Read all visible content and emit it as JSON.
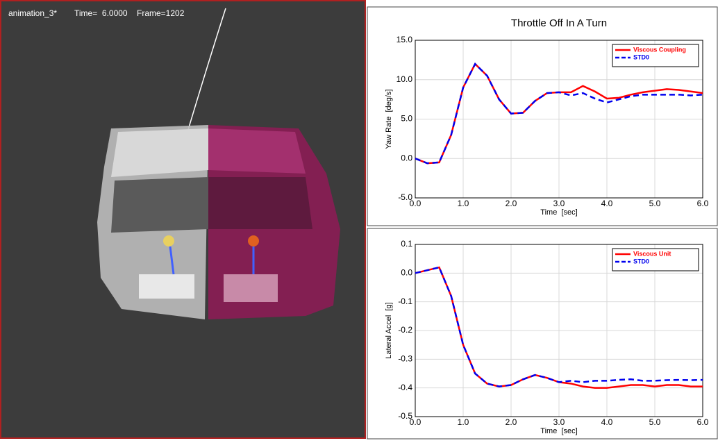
{
  "viewport": {
    "name": "animation_3*",
    "time": "Time=  6.0000",
    "frame": "Frame=1202"
  },
  "chart_data": [
    {
      "type": "line",
      "title": "Throttle Off In A Turn",
      "x_label": "Time  [sec]",
      "y_label": "Yaw Rate  [deg/s]",
      "x": [
        0,
        0.25,
        0.5,
        0.75,
        1.0,
        1.25,
        1.5,
        1.75,
        2.0,
        2.25,
        2.5,
        2.75,
        3.0,
        3.25,
        3.5,
        3.75,
        4.0,
        4.25,
        4.5,
        4.75,
        5.0,
        5.25,
        5.5,
        5.75,
        6.0
      ],
      "series": [
        {
          "name": "Viscous Coupling",
          "color": "#ff0000",
          "linestyle": "solid",
          "values": [
            0,
            -0.6,
            -0.5,
            3,
            9,
            12,
            10.5,
            7.5,
            5.7,
            5.8,
            7.3,
            8.3,
            8.4,
            8.4,
            9.2,
            8.5,
            7.6,
            7.7,
            8.1,
            8.4,
            8.6,
            8.8,
            8.7,
            8.5,
            8.3
          ]
        },
        {
          "name": "STD0",
          "color": "#0000ee",
          "linestyle": "dashed",
          "values": [
            0,
            -0.6,
            -0.5,
            3,
            9,
            12,
            10.5,
            7.5,
            5.7,
            5.8,
            7.3,
            8.3,
            8.4,
            8.0,
            8.3,
            7.6,
            7.1,
            7.5,
            7.9,
            8.1,
            8.1,
            8.1,
            8.1,
            8.0,
            8.1
          ]
        }
      ],
      "xlim": [
        0,
        6
      ],
      "ylim": [
        -5,
        15
      ],
      "xticks": [
        {
          "value": 0,
          "label": "0.0"
        },
        {
          "value": 1,
          "label": "1.0"
        },
        {
          "value": 2,
          "label": "2.0"
        },
        {
          "value": 3,
          "label": "3.0"
        },
        {
          "value": 4,
          "label": "4.0"
        },
        {
          "value": 5,
          "label": "5.0"
        },
        {
          "value": 6,
          "label": "6.0"
        }
      ],
      "yticks": [
        {
          "value": -5,
          "label": "-5.0"
        },
        {
          "value": 0,
          "label": "0.0"
        },
        {
          "value": 5,
          "label": "5.0"
        },
        {
          "value": 10,
          "label": "10.0"
        },
        {
          "value": 15,
          "label": "15.0"
        }
      ],
      "grid": true,
      "legend": "upper right"
    },
    {
      "type": "line",
      "x_label": "Time  [sec]",
      "y_label": "Lateral Accel  [g]",
      "x": [
        0,
        0.25,
        0.5,
        0.75,
        1.0,
        1.25,
        1.5,
        1.75,
        2.0,
        2.25,
        2.5,
        2.75,
        3.0,
        3.25,
        3.5,
        3.75,
        4.0,
        4.25,
        4.5,
        4.75,
        5.0,
        5.25,
        5.5,
        5.75,
        6.0
      ],
      "series": [
        {
          "name": "Viscous Unit",
          "color": "#ff0000",
          "linestyle": "solid",
          "values": [
            0,
            0.01,
            0.02,
            -0.08,
            -0.25,
            -0.35,
            -0.385,
            -0.395,
            -0.39,
            -0.37,
            -0.355,
            -0.365,
            -0.38,
            -0.385,
            -0.395,
            -0.4,
            -0.4,
            -0.395,
            -0.39,
            -0.39,
            -0.395,
            -0.39,
            -0.39,
            -0.395,
            -0.395
          ]
        },
        {
          "name": "STD0",
          "color": "#0000ee",
          "linestyle": "dashed",
          "values": [
            0,
            0.01,
            0.02,
            -0.08,
            -0.25,
            -0.35,
            -0.385,
            -0.395,
            -0.39,
            -0.37,
            -0.355,
            -0.365,
            -0.38,
            -0.375,
            -0.38,
            -0.375,
            -0.375,
            -0.372,
            -0.37,
            -0.375,
            -0.375,
            -0.373,
            -0.372,
            -0.373,
            -0.372
          ]
        }
      ],
      "xlim": [
        0,
        6
      ],
      "ylim": [
        -0.5,
        0.1
      ],
      "xticks": [
        {
          "value": 0,
          "label": "0.0"
        },
        {
          "value": 1,
          "label": "1.0"
        },
        {
          "value": 2,
          "label": "2.0"
        },
        {
          "value": 3,
          "label": "3.0"
        },
        {
          "value": 4,
          "label": "4.0"
        },
        {
          "value": 5,
          "label": "5.0"
        },
        {
          "value": 6,
          "label": "6.0"
        }
      ],
      "yticks": [
        {
          "value": -0.5,
          "label": "-0.5"
        },
        {
          "value": -0.4,
          "label": "-0.4"
        },
        {
          "value": -0.3,
          "label": "-0.3"
        },
        {
          "value": -0.2,
          "label": "-0.2"
        },
        {
          "value": -0.1,
          "label": "-0.1"
        },
        {
          "value": 0,
          "label": "0.0"
        },
        {
          "value": 0.1,
          "label": "0.1"
        }
      ],
      "grid": true,
      "legend": "upper right"
    }
  ]
}
